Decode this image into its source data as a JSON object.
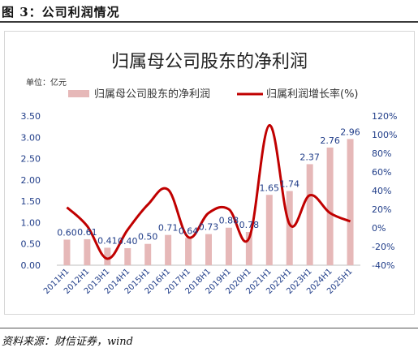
{
  "figure_label": "图 3：公司利润情况",
  "source": "资料来源：财信证券，wind",
  "colors": {
    "bars": "#e6b8b8",
    "line": "#c00000",
    "axis_text": "#1f3c88",
    "label_text": "#1f3c88"
  },
  "chart_data": {
    "type": "bar+line",
    "title": "归属母公司股东的净利润",
    "unit_label": "单位：亿元",
    "categories": [
      "2011H1",
      "2012H1",
      "2013H1",
      "2014H1",
      "2015H1",
      "2016H1",
      "2017H1",
      "2018H1",
      "2019H1",
      "2020H1",
      "2021H1",
      "2022H1",
      "2023H1",
      "2024H1",
      "2025H1"
    ],
    "series": [
      {
        "name": "归属母公司股东的净利润",
        "type": "bar",
        "axis": "left",
        "values": [
          0.6,
          0.61,
          0.41,
          0.4,
          0.5,
          0.71,
          0.64,
          0.73,
          0.88,
          0.78,
          1.65,
          1.74,
          2.37,
          2.76,
          2.96
        ],
        "labels": [
          "0.60",
          "0.61",
          "0.41",
          "0.40",
          "0.50",
          "0.71",
          "0.64",
          "0.73",
          "0.88",
          "0.78",
          "1.65",
          "1.74",
          "2.37",
          "2.76",
          "2.96"
        ]
      },
      {
        "name": "归属利润增长率(%)",
        "type": "line",
        "axis": "right",
        "values": [
          22,
          2,
          -33,
          -2,
          25,
          41,
          -10,
          16,
          20,
          -11,
          110,
          4,
          35,
          16,
          7
        ]
      }
    ],
    "y_left": {
      "range": [
        0,
        3.5
      ],
      "ticks": [
        "0.00",
        "0.50",
        "1.00",
        "1.50",
        "2.00",
        "2.50",
        "3.00",
        "3.50"
      ]
    },
    "y_right": {
      "range": [
        -40,
        120
      ],
      "ticks": [
        "-40%",
        "-20%",
        "0%",
        "20%",
        "40%",
        "60%",
        "80%",
        "100%",
        "120%"
      ]
    },
    "legend_position": "top",
    "grid": false
  }
}
